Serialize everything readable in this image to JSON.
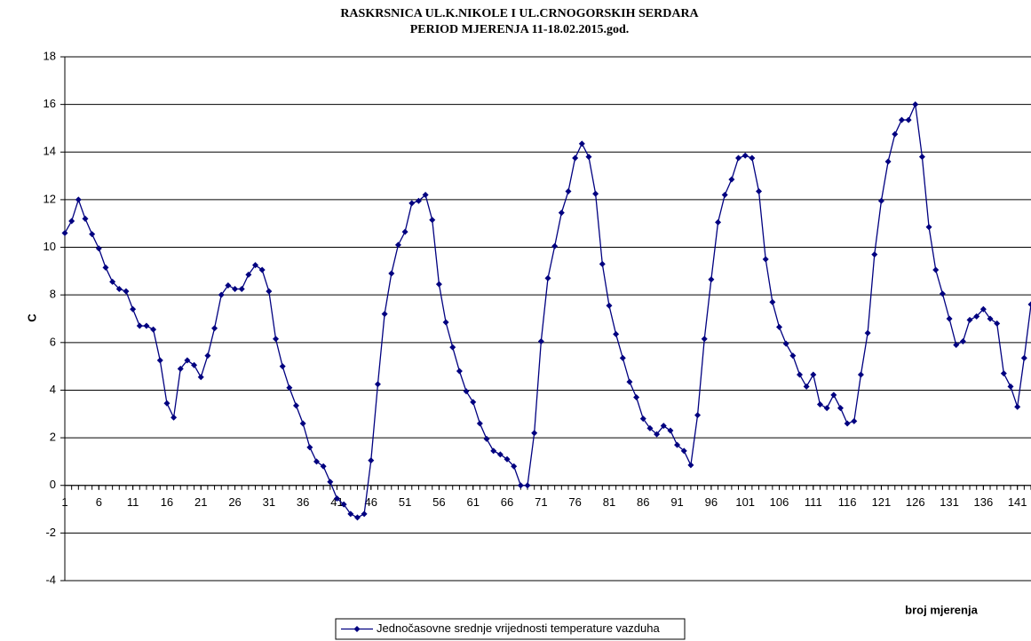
{
  "chart_data": {
    "type": "line",
    "title": "RASKRSNICA UL.K.NIKOLE I UL.CRNOGORSKIH SERDARA",
    "subtitle": "PERIOD MJERENJA 11-18.02.2015.god.",
    "y_label": "C",
    "x_label": "broj mjerenja",
    "x": [
      1,
      2,
      3,
      4,
      5,
      6,
      7,
      8,
      9,
      10,
      11,
      12,
      13,
      14,
      15,
      16,
      17,
      18,
      19,
      20,
      21,
      22,
      23,
      24,
      25,
      26,
      27,
      28,
      29,
      30,
      31,
      32,
      33,
      34,
      35,
      36,
      37,
      38,
      39,
      40,
      41,
      42,
      43,
      44,
      45,
      46,
      47,
      48,
      49,
      50,
      51,
      52,
      53,
      54,
      55,
      56,
      57,
      58,
      59,
      60,
      61,
      62,
      63,
      64,
      65,
      66,
      67,
      68,
      69,
      70,
      71,
      72,
      73,
      74,
      75,
      76,
      77,
      78,
      79,
      80,
      81,
      82,
      83,
      84,
      85,
      86,
      87,
      88,
      89,
      90,
      91,
      92,
      93,
      94,
      95,
      96,
      97,
      98,
      99,
      100,
      101,
      102,
      103,
      104,
      105,
      106,
      107,
      108,
      109,
      110,
      111,
      112,
      113,
      114,
      115,
      116,
      117,
      118,
      119,
      120,
      121,
      122,
      123,
      124,
      125,
      126,
      127,
      128,
      129,
      130,
      131,
      132,
      133,
      134,
      135,
      136,
      137,
      138,
      139,
      140,
      141,
      142,
      143
    ],
    "series": [
      {
        "name": "Jednočasovne srednje vrijednosti temperature vazduha",
        "color": "#000080",
        "values": [
          10.6,
          11.1,
          12.0,
          11.2,
          10.55,
          9.95,
          9.15,
          8.55,
          8.25,
          8.15,
          7.4,
          6.7,
          6.7,
          6.55,
          5.25,
          3.45,
          2.85,
          4.9,
          5.25,
          5.05,
          4.55,
          5.45,
          6.6,
          8.0,
          8.4,
          8.25,
          8.25,
          8.85,
          9.25,
          9.05,
          8.15,
          6.15,
          5.0,
          4.1,
          3.35,
          2.6,
          1.6,
          1.0,
          0.8,
          0.15,
          -0.55,
          -0.8,
          -1.2,
          -1.35,
          -1.2,
          1.05,
          4.25,
          7.2,
          8.9,
          10.1,
          10.65,
          11.85,
          11.95,
          12.2,
          11.15,
          8.45,
          6.85,
          5.8,
          4.8,
          3.95,
          3.5,
          2.6,
          1.95,
          1.45,
          1.3,
          1.1,
          0.8,
          0.0,
          0.0,
          2.2,
          6.05,
          8.7,
          10.05,
          11.45,
          12.35,
          13.75,
          14.35,
          13.8,
          12.25,
          9.3,
          7.55,
          6.35,
          5.35,
          4.35,
          3.7,
          2.8,
          2.4,
          2.15,
          2.5,
          2.3,
          1.7,
          1.45,
          0.85,
          2.95,
          6.15,
          8.65,
          11.05,
          12.2,
          12.85,
          13.75,
          13.85,
          13.75,
          12.35,
          9.5,
          7.7,
          6.65,
          5.95,
          5.45,
          4.65,
          4.15,
          4.65,
          3.4,
          3.25,
          3.8,
          3.25,
          2.6,
          2.7,
          4.65,
          6.4,
          9.7,
          11.95,
          13.6,
          14.75,
          15.35,
          15.35,
          16.0,
          13.8,
          10.85,
          9.05,
          8.05,
          7.0,
          5.9,
          6.05,
          6.95,
          7.1,
          7.4,
          7.0,
          6.8,
          4.7,
          4.15,
          3.3,
          5.35,
          7.6
        ]
      }
    ],
    "xlim": [
      1,
      143
    ],
    "xticks": [
      1,
      6,
      11,
      16,
      21,
      26,
      31,
      36,
      41,
      46,
      51,
      56,
      61,
      66,
      71,
      76,
      81,
      86,
      91,
      96,
      101,
      106,
      111,
      116,
      121,
      126,
      131,
      136,
      141
    ],
    "ylim": [
      -4,
      18
    ],
    "yticks": [
      -4,
      -2,
      0,
      2,
      4,
      6,
      8,
      10,
      12,
      14,
      16,
      18
    ],
    "grid": true,
    "legend": "bottom"
  }
}
